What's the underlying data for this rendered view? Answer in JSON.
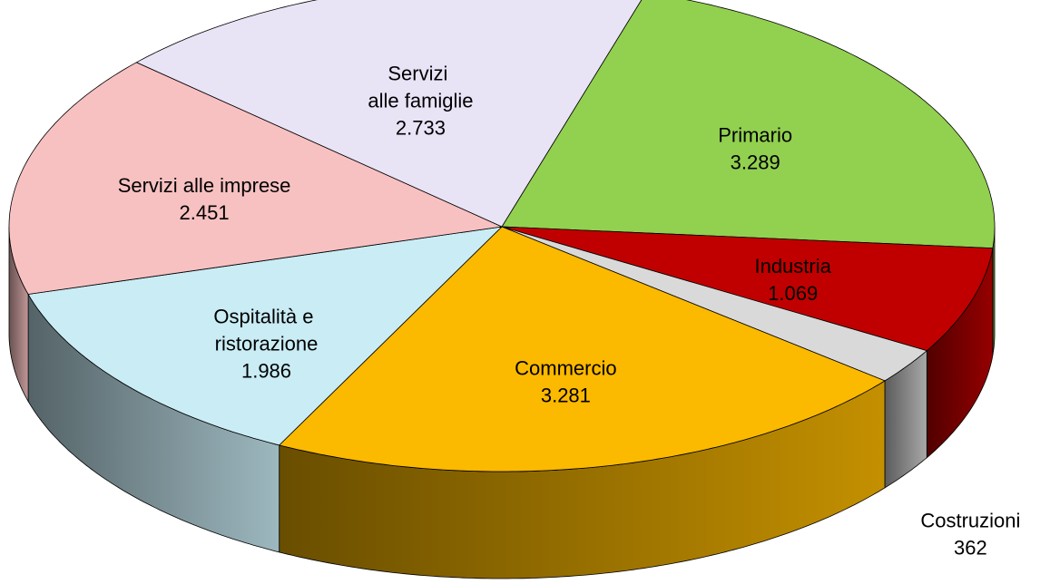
{
  "chart_data": {
    "type": "pie3d",
    "categories": [
      "Primario",
      "Industria",
      "Costruzioni",
      "Commercio",
      "Ospitalità e ristorazione",
      "Servizi alle imprese",
      "Servizi alle famiglie"
    ],
    "values": [
      3289,
      1069,
      362,
      3281,
      1986,
      2451,
      2733
    ],
    "value_labels": [
      "3.289",
      "1.069",
      "362",
      "3.281",
      "1.986",
      "2.451",
      "2.733"
    ],
    "colors": [
      "#92d050",
      "#c00000",
      "#d9d9d9",
      "#fbb900",
      "#c9ecf5",
      "#f8c1c1",
      "#e9e3f6"
    ]
  }
}
